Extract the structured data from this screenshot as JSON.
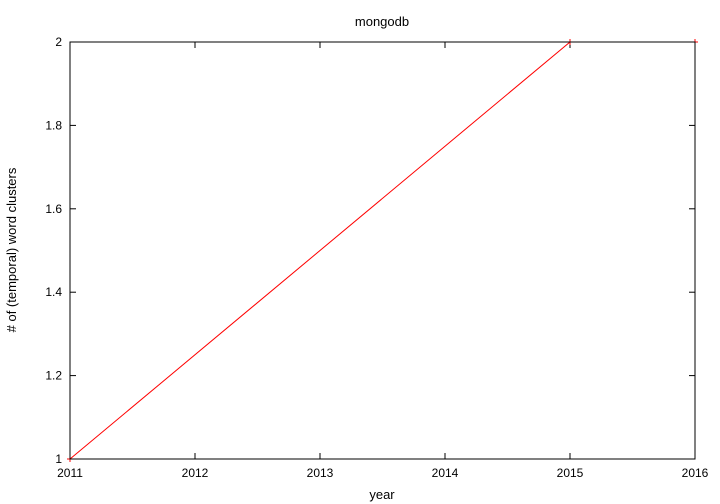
{
  "chart_data": {
    "type": "line",
    "title": "mongodb",
    "xlabel": "year",
    "ylabel": "# of (temporal) word clusters",
    "xlim": [
      2011,
      2016
    ],
    "ylim": [
      1,
      2
    ],
    "x_ticks": [
      "2011",
      "2012",
      "2013",
      "2014",
      "2015",
      "2016"
    ],
    "y_ticks": [
      "1",
      "1.2",
      "1.4",
      "1.6",
      "1.8",
      "2"
    ],
    "grid": false,
    "series": [
      {
        "color": "#ff0000",
        "x": [
          2011,
          2015,
          2016
        ],
        "y": [
          1,
          2,
          2
        ]
      }
    ]
  }
}
